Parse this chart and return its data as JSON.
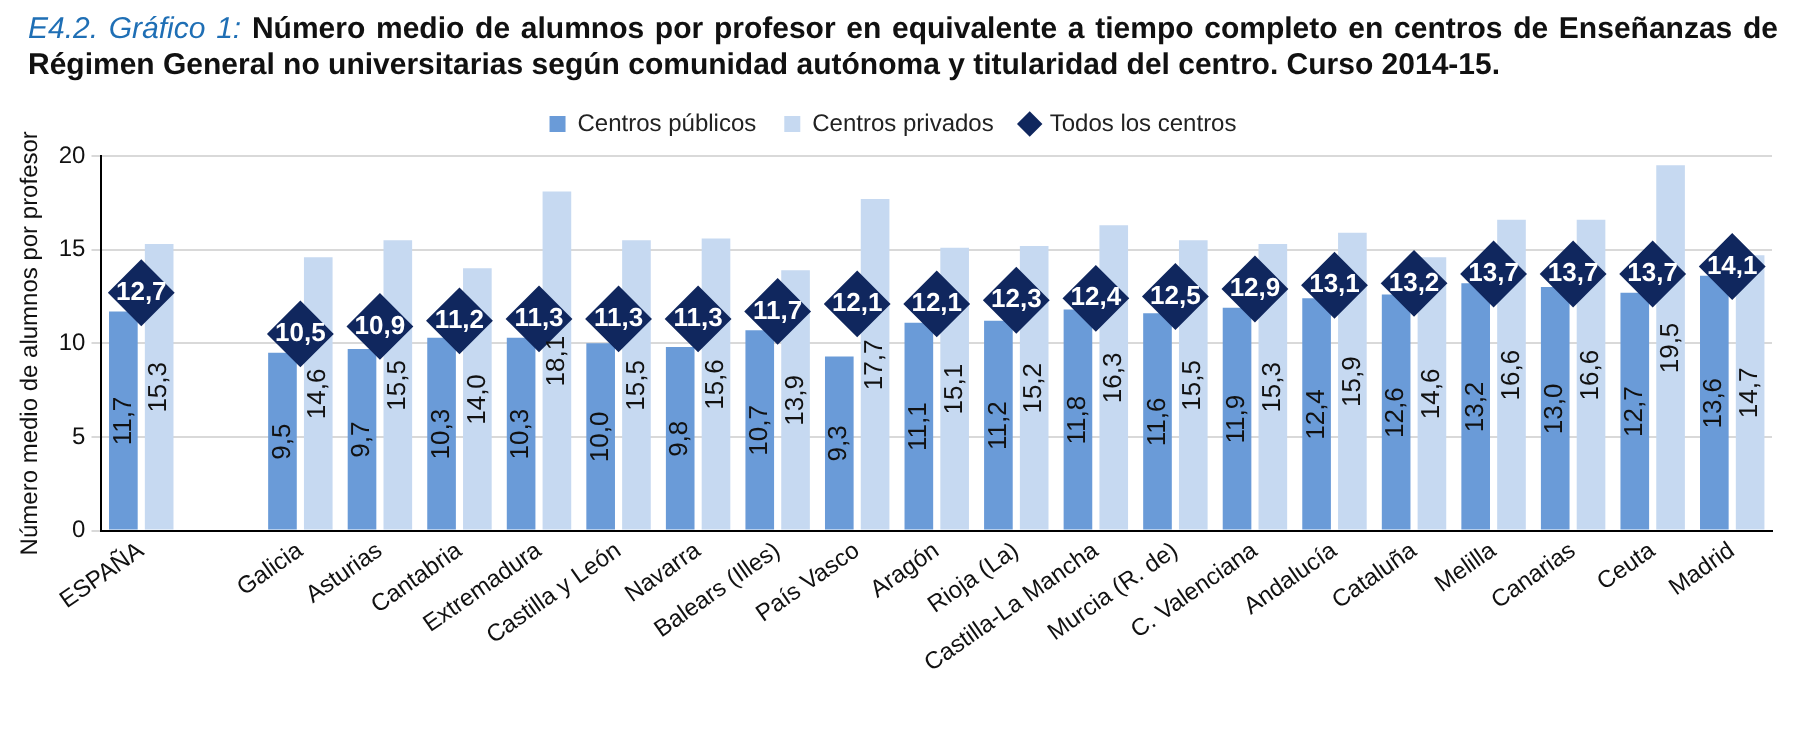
{
  "chart_data": {
    "type": "bar",
    "title": "E4.2. Gráfico 1: Número medio de alumnos por profesor en equivalente a tiempo completo en centros de Enseñanzas de Régimen General no universitarias según comunidad autónoma y titularidad del centro. Curso 2014-15.",
    "ylabel": "Número medio de alumnos por profesor",
    "categories": [
      "ESPAÑA",
      null,
      "Galicia",
      "Asturias",
      "Cantabria",
      "Extremadura",
      "Castilla y León",
      "Navarra",
      "Balears (Illes)",
      "País Vasco",
      "Aragón",
      "Rioja (La)",
      "Castilla-La Mancha",
      "Murcia (R. de)",
      "C. Valenciana",
      "Andalucía",
      "Cataluña",
      "Melilla",
      "Canarias",
      "Ceuta",
      "Madrid"
    ],
    "series": [
      {
        "name": "Centros públicos",
        "color": "#6a9bd8",
        "values": [
          11.7,
          null,
          9.5,
          9.7,
          10.3,
          10.3,
          10.0,
          9.8,
          10.7,
          9.3,
          11.1,
          11.2,
          11.8,
          11.6,
          11.9,
          12.4,
          12.6,
          13.2,
          13.0,
          12.7,
          13.6
        ],
        "value_labels": [
          "11,7",
          null,
          "9,5",
          "9,7",
          "10,3",
          "10,3",
          "10,0",
          "9,8",
          "10,7",
          "9,3",
          "11,1",
          "11,2",
          "11,8",
          "11,6",
          "11,9",
          "12,4",
          "12,6",
          "13,2",
          "13,0",
          "12,7",
          "13,6"
        ]
      },
      {
        "name": "Centros privados",
        "color": "#c6d9f1",
        "values": [
          15.3,
          null,
          14.6,
          15.5,
          14.0,
          18.1,
          15.5,
          15.6,
          13.9,
          17.7,
          15.1,
          15.2,
          16.3,
          15.5,
          15.3,
          15.9,
          14.6,
          16.6,
          16.6,
          19.5,
          14.7
        ],
        "value_labels": [
          "15,3",
          null,
          "14,6",
          "15,5",
          "14,0",
          "18,1",
          "15,5",
          "15,6",
          "13,9",
          "17,7",
          "15,1",
          "15,2",
          "16,3",
          "15,5",
          "15,3",
          "15,9",
          "14,6",
          "16,6",
          "16,6",
          "19,5",
          "14,7"
        ]
      },
      {
        "name": "Todos los centros",
        "type": "scatter",
        "marker": "diamond",
        "color": "#10275e",
        "values": [
          12.7,
          null,
          10.5,
          10.9,
          11.2,
          11.3,
          11.3,
          11.3,
          11.7,
          12.1,
          12.1,
          12.3,
          12.4,
          12.5,
          12.9,
          13.1,
          13.2,
          13.7,
          13.7,
          13.7,
          14.1
        ],
        "value_labels": [
          "12,7",
          null,
          "10,5",
          "10,9",
          "11,2",
          "11,3",
          "11,3",
          "11,3",
          "11,7",
          "12,1",
          "12,1",
          "12,3",
          "12,4",
          "12,5",
          "12,9",
          "13,1",
          "13,2",
          "13,7",
          "13,7",
          "13,7",
          "14,1"
        ]
      }
    ],
    "ylim": [
      0,
      20
    ],
    "yticks": [
      0,
      5,
      10,
      15,
      20
    ],
    "grid": "y",
    "legend": "top"
  }
}
